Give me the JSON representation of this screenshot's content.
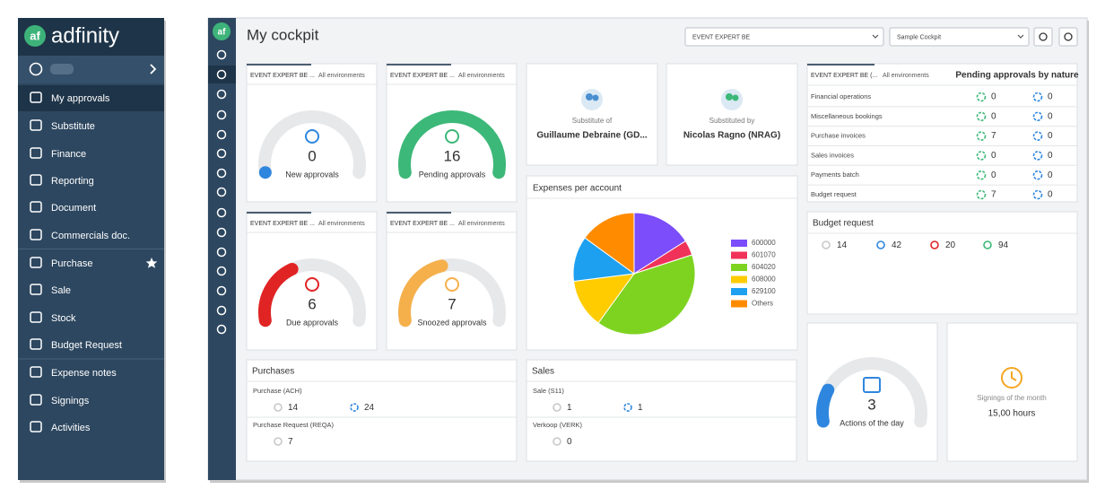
{
  "sidebar": {
    "logo": "af",
    "brand": "adfinity",
    "menu": [
      "My approvals",
      "Substitute",
      "Finance",
      "Reporting",
      "Document",
      "Commercials doc.",
      "Purchase",
      "Sale",
      "Stock",
      "Budget Request",
      "Expense notes",
      "Signings",
      "Activities"
    ]
  },
  "header": {
    "title": "My cockpit",
    "environment": "EVENT EXPERT BE",
    "cockpit": "Sample Cockpit"
  },
  "gauges": [
    {
      "tab": "EVENT EXPERT BE ...",
      "tab2": "All environments",
      "value": 0,
      "label": "New approvals",
      "color": "#2e86de"
    },
    {
      "tab": "EVENT EXPERT BE ...",
      "tab2": "All environments",
      "value": 16,
      "label": "Pending approvals",
      "color": "#3cb878"
    },
    {
      "tab": "EVENT EXPERT BE ...",
      "tab2": "All environments",
      "value": 6,
      "label": "Due approvals",
      "color": "#e02424"
    },
    {
      "tab": "EVENT EXPERT BE ...",
      "tab2": "All environments",
      "value": 7,
      "label": "Snoozed approvals",
      "color": "#f5b04c"
    }
  ],
  "substitutes": [
    {
      "label": "Substitute of",
      "name": "Guillaume Debraine (GD..."
    },
    {
      "label": "Substituted by",
      "name": "Nicolas Ragno (NRAG)"
    }
  ],
  "chart_data": {
    "type": "pie",
    "title": "Expenses per account",
    "categories": [
      "600000",
      "601070",
      "604020",
      "608000",
      "629100",
      "Others"
    ],
    "values": [
      16,
      4,
      40,
      13,
      12,
      15
    ],
    "colors": [
      "#7b4dfb",
      "#f0325a",
      "#7ed321",
      "#ffcc00",
      "#1ea0f0",
      "#ff8c00"
    ]
  },
  "pending_by_nature": {
    "tab": "EVENT EXPERT BE (...",
    "tab2": "All environments",
    "title": "Pending approvals by nature",
    "rows": [
      {
        "label": "Financial operations",
        "pending": 0,
        "snoozed": 0
      },
      {
        "label": "Miscellaneous bookings",
        "pending": 0,
        "snoozed": 0
      },
      {
        "label": "Purchase invoices",
        "pending": 7,
        "snoozed": 0
      },
      {
        "label": "Sales invoices",
        "pending": 0,
        "snoozed": 0
      },
      {
        "label": "Payments batch",
        "pending": 0,
        "snoozed": 0
      },
      {
        "label": "Budget request",
        "pending": 7,
        "snoozed": 0
      }
    ]
  },
  "budget_request": {
    "title": "Budget request",
    "draft": 14,
    "pending": 42,
    "rejected": 20,
    "approved": 94
  },
  "purchases": {
    "title": "Purchases",
    "rows": [
      {
        "label": "Purchase (ACH)",
        "draft": 14,
        "pending": 24
      },
      {
        "label": "Purchase Request (REQA)",
        "draft": 7
      }
    ]
  },
  "sales": {
    "title": "Sales",
    "rows": [
      {
        "label": "Sale (S11)",
        "draft": 1,
        "pending": 1
      },
      {
        "label": "Verkoop (VERK)",
        "draft": 0
      }
    ]
  },
  "actions": {
    "value": 3,
    "label": "Actions of the day",
    "color": "#2e86de"
  },
  "signings": {
    "label": "Signings of the month",
    "value": "15,00 hours"
  }
}
